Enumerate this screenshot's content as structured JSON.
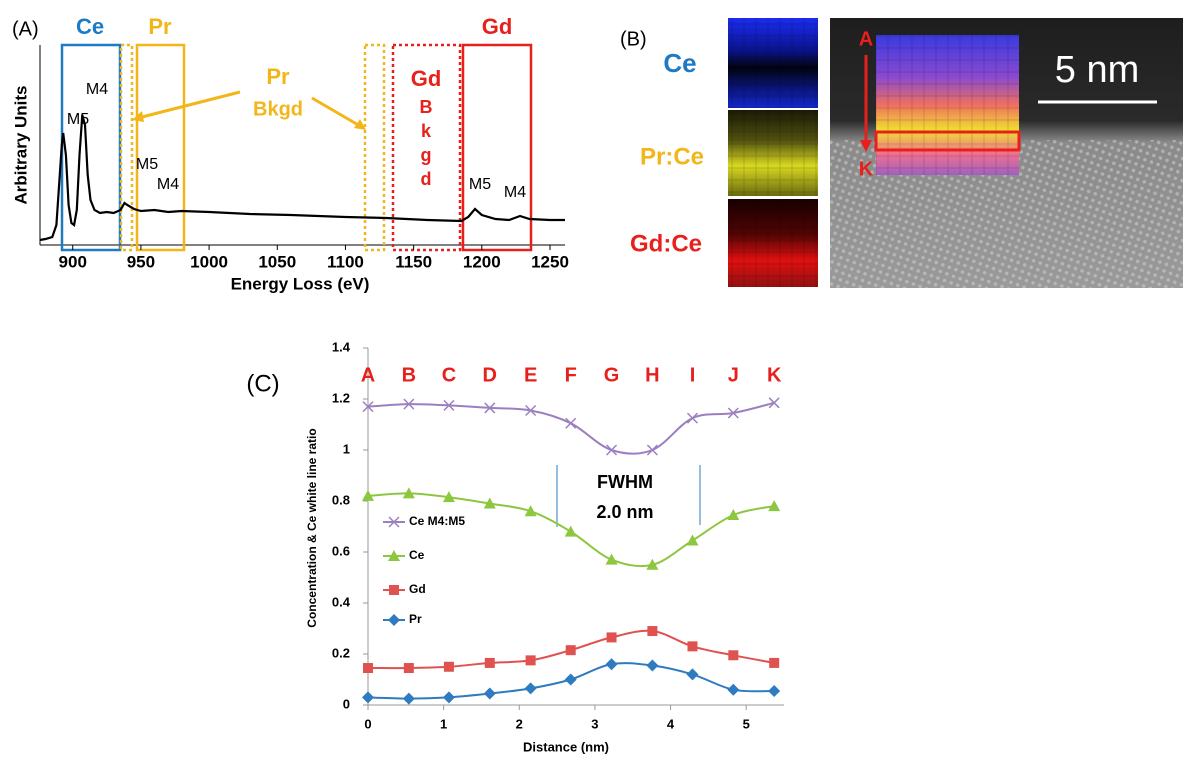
{
  "chart_data": [
    {
      "type": "line",
      "label": "(A)",
      "x_label": "Energy Loss (eV)",
      "y_label": "Arbitrary Units",
      "xlim": [
        876,
        1261
      ],
      "xticks": [
        900,
        950,
        1000,
        1050,
        1100,
        1150,
        1200,
        1250
      ],
      "ylim": [
        0,
        200
      ],
      "series": [
        {
          "color": "#000000",
          "x": [
            876,
            880,
            885,
            888,
            890,
            892,
            893,
            895,
            897,
            899,
            901,
            903,
            905,
            907,
            909,
            911,
            913,
            916,
            920,
            925,
            930,
            935,
            938,
            940,
            945,
            950,
            960,
            970,
            980,
            1000,
            1030,
            1060,
            1100,
            1130,
            1160,
            1185,
            1190,
            1195,
            1200,
            1210,
            1220,
            1228,
            1235,
            1250,
            1261
          ],
          "values": [
            5,
            6,
            8,
            20,
            60,
            100,
            112,
            90,
            40,
            22,
            20,
            35,
            90,
            130,
            120,
            70,
            45,
            35,
            32,
            33,
            32,
            35,
            42,
            40,
            36,
            34,
            35,
            33,
            34,
            33,
            31,
            30,
            28,
            27,
            25,
            24,
            28,
            36,
            30,
            26,
            25,
            29,
            26,
            25,
            25
          ]
        }
      ],
      "window_labels": {
        "ce": "Ce",
        "pr": "Pr",
        "gd": "Gd",
        "pr_bkgd": [
          "Pr",
          "Bkgd"
        ],
        "gd_bkgd": [
          "Gd",
          "B",
          "k",
          "g",
          "d"
        ]
      },
      "edge_labels": [
        "M5",
        "M4",
        "M5",
        "M4",
        "M5",
        "M4"
      ]
    },
    {
      "type": "line",
      "label": "(C)",
      "x_label": "Distance (nm)",
      "y_label": "Concentration & Ce white line ratio",
      "xlim": [
        0,
        5.5
      ],
      "xticks": [
        0,
        1,
        2,
        3,
        4,
        5
      ],
      "ylim": [
        0,
        1.4
      ],
      "yticks": [
        0,
        0.2,
        0.4,
        0.6,
        0.8,
        1,
        1.2,
        1.4
      ],
      "x": [
        0,
        0.54,
        1.07,
        1.61,
        2.15,
        2.68,
        3.22,
        3.76,
        4.29,
        4.83,
        5.37
      ],
      "point_labels": [
        "A",
        "B",
        "C",
        "D",
        "E",
        "F",
        "G",
        "H",
        "I",
        "J",
        "K"
      ],
      "legend": "left",
      "series": [
        {
          "name": "Ce M4:M5",
          "color": "#9b7fc0",
          "marker": "x",
          "values": [
            1.17,
            1.18,
            1.175,
            1.165,
            1.155,
            1.105,
            1.0,
            1.0,
            1.125,
            1.145,
            1.185
          ]
        },
        {
          "name": "Ce",
          "color": "#8dc63f",
          "marker": "triangle",
          "values": [
            0.82,
            0.83,
            0.815,
            0.79,
            0.76,
            0.68,
            0.57,
            0.55,
            0.645,
            0.745,
            0.78
          ]
        },
        {
          "name": "Gd",
          "color": "#e0524f",
          "marker": "square",
          "values": [
            0.145,
            0.145,
            0.15,
            0.165,
            0.175,
            0.215,
            0.265,
            0.29,
            0.23,
            0.195,
            0.165
          ]
        },
        {
          "name": "Pr",
          "color": "#2e7bbf",
          "marker": "diamond",
          "values": [
            0.03,
            0.025,
            0.03,
            0.045,
            0.065,
            0.1,
            0.16,
            0.155,
            0.12,
            0.06,
            0.055
          ]
        }
      ],
      "annotation": [
        "FWHM",
        "2.0 nm"
      ]
    }
  ],
  "panel_b": {
    "label": "(B)",
    "maps": [
      "Ce",
      "Pr:Ce",
      "Gd:Ce"
    ],
    "line_start": "A",
    "line_end": "K",
    "scale_bar": "5 nm"
  }
}
